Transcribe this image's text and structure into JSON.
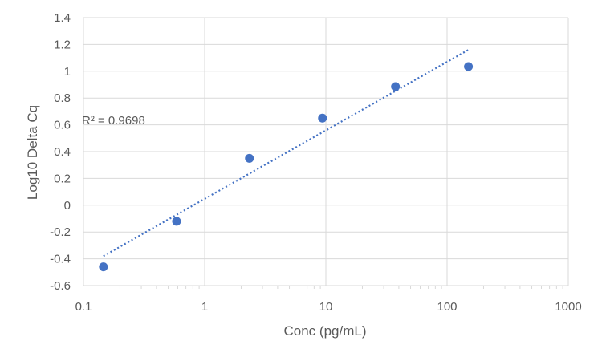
{
  "chart_data": {
    "type": "scatter",
    "xlabel": "Conc (pg/mL)",
    "ylabel": "Log10 Delta Cq",
    "x_scale": "log",
    "xlim": [
      0.1,
      1000
    ],
    "ylim": [
      -0.6,
      1.4
    ],
    "x_ticks": [
      "0.1",
      "1",
      "10",
      "100",
      "1000"
    ],
    "y_ticks": [
      "-0.6",
      "-0.4",
      "-0.2",
      "0",
      "0.2",
      "0.4",
      "0.6",
      "0.8",
      "1",
      "1.2",
      "1.4"
    ],
    "grid": true,
    "series": [
      {
        "x": [
          0.146,
          0.586,
          2.34,
          9.375,
          37.5,
          150
        ],
        "y": [
          -0.46,
          -0.12,
          0.35,
          0.65,
          0.885,
          1.035
        ],
        "color": "#4472C4"
      }
    ],
    "trendline": {
      "type": "logarithmic",
      "x": [
        0.146,
        150
      ],
      "y": [
        -0.38,
        1.16
      ],
      "color": "#4472C4",
      "style": "dotted"
    },
    "annotation": "R² = 0.9698"
  }
}
